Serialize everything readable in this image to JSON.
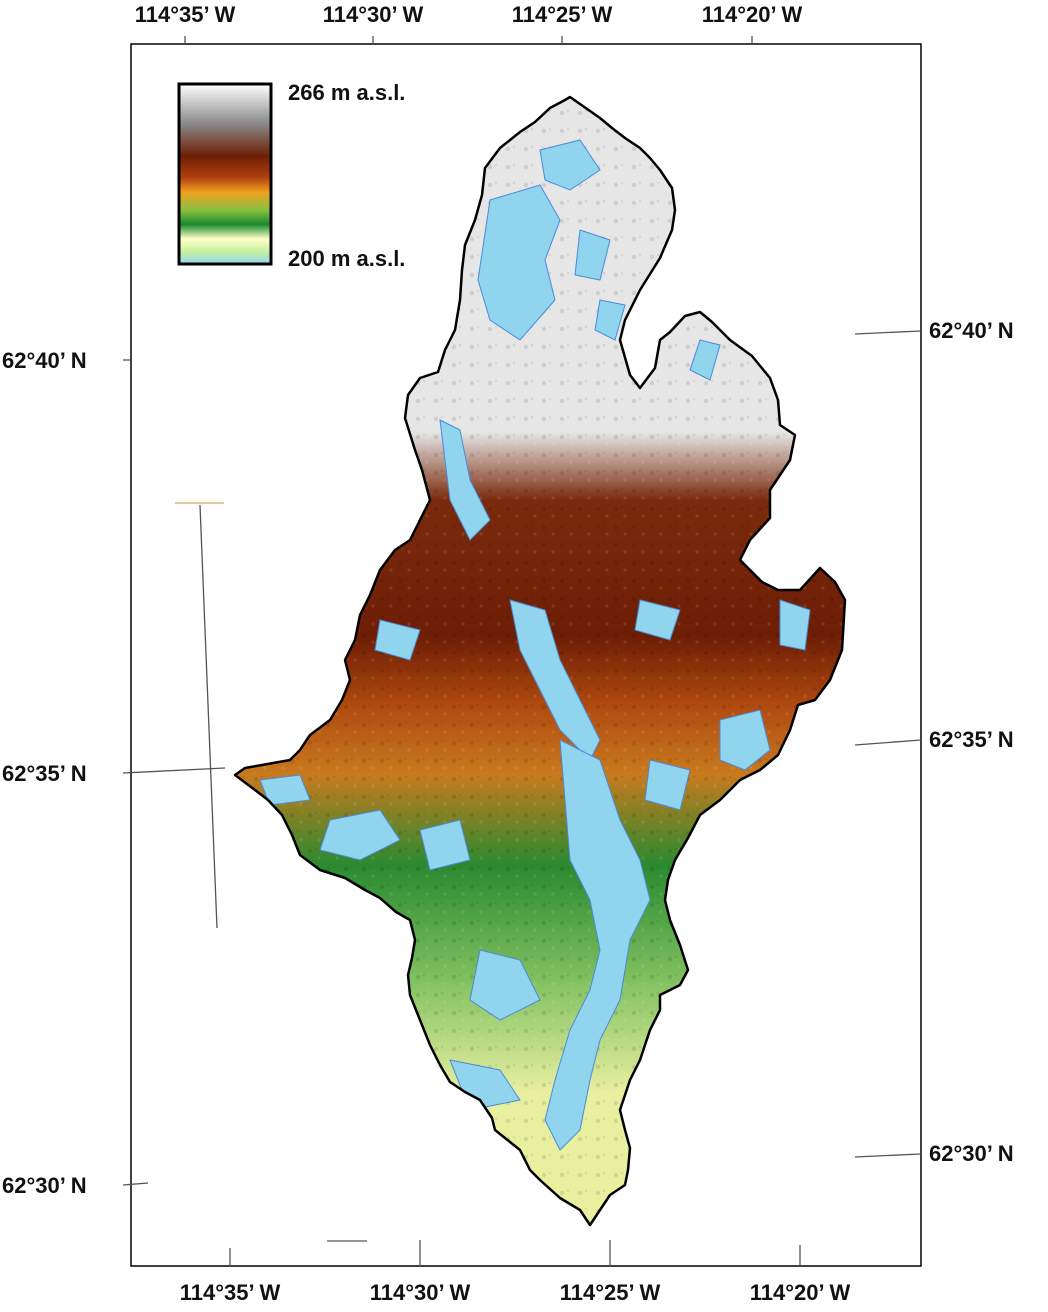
{
  "map": {
    "top_lon_labels": [
      "114°35’ W",
      "114°30’ W",
      "114°25’ W",
      "114°20’ W"
    ],
    "bottom_lon_labels": [
      "114°35’ W",
      "114°30’ W",
      "114°25’ W",
      "114°20’ W"
    ],
    "left_lat_labels": [
      "62°40’ N",
      "62°35’ N",
      "62°30’ N"
    ],
    "right_lat_labels": [
      "62°40’ N",
      "62°35’ N",
      "62°30’ N"
    ]
  },
  "legend": {
    "max_label": "266 m a.s.l.",
    "min_label": "200 m a.s.l.",
    "gradient_colors": [
      "#ffffff",
      "#8a8a8a",
      "#7a3a1a",
      "#6e1e05",
      "#c85a10",
      "#f0a020",
      "#8ac040",
      "#1a8a30",
      "#60b040",
      "#ffffc8",
      "#b0e8a0",
      "#90d8f0"
    ]
  },
  "colors": {
    "water": "#90d4ee",
    "frame": "#000000"
  }
}
